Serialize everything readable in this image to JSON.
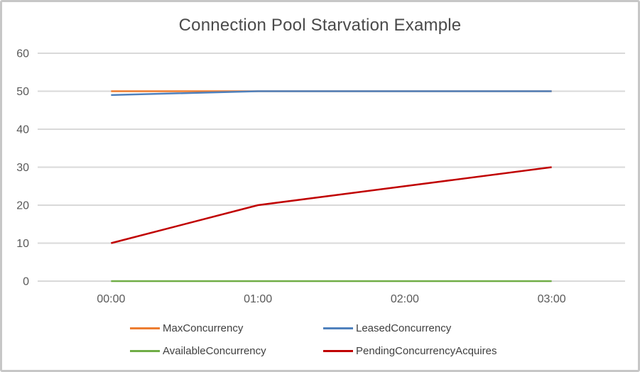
{
  "chart_data": {
    "type": "line",
    "title": "Connection Pool Starvation Example",
    "categories": [
      "00:00",
      "01:00",
      "02:00",
      "03:00"
    ],
    "series": [
      {
        "name": "MaxConcurrency",
        "color": "#ED7D31",
        "values": [
          50,
          50,
          50,
          50
        ]
      },
      {
        "name": "LeasedConcurrency",
        "color": "#4F81BD",
        "values": [
          49,
          50,
          50,
          50
        ]
      },
      {
        "name": "AvailableConcurrency",
        "color": "#70AD47",
        "values": [
          0,
          0,
          0,
          0
        ]
      },
      {
        "name": "PendingConcurrencyAcquires",
        "color": "#C00000",
        "values": [
          10,
          20,
          25,
          30
        ]
      }
    ],
    "xlabel": "",
    "ylabel": "",
    "ylim": [
      0,
      60
    ],
    "yticks": [
      0,
      10,
      20,
      30,
      40,
      50,
      60
    ],
    "grid": "horizontal",
    "grid_color": "#D9D9D9",
    "text_color": "#595959",
    "legend_position": "bottom",
    "legend_rows": [
      [
        "MaxConcurrency",
        "LeasedConcurrency"
      ],
      [
        "AvailableConcurrency",
        "PendingConcurrencyAcquires"
      ]
    ]
  }
}
